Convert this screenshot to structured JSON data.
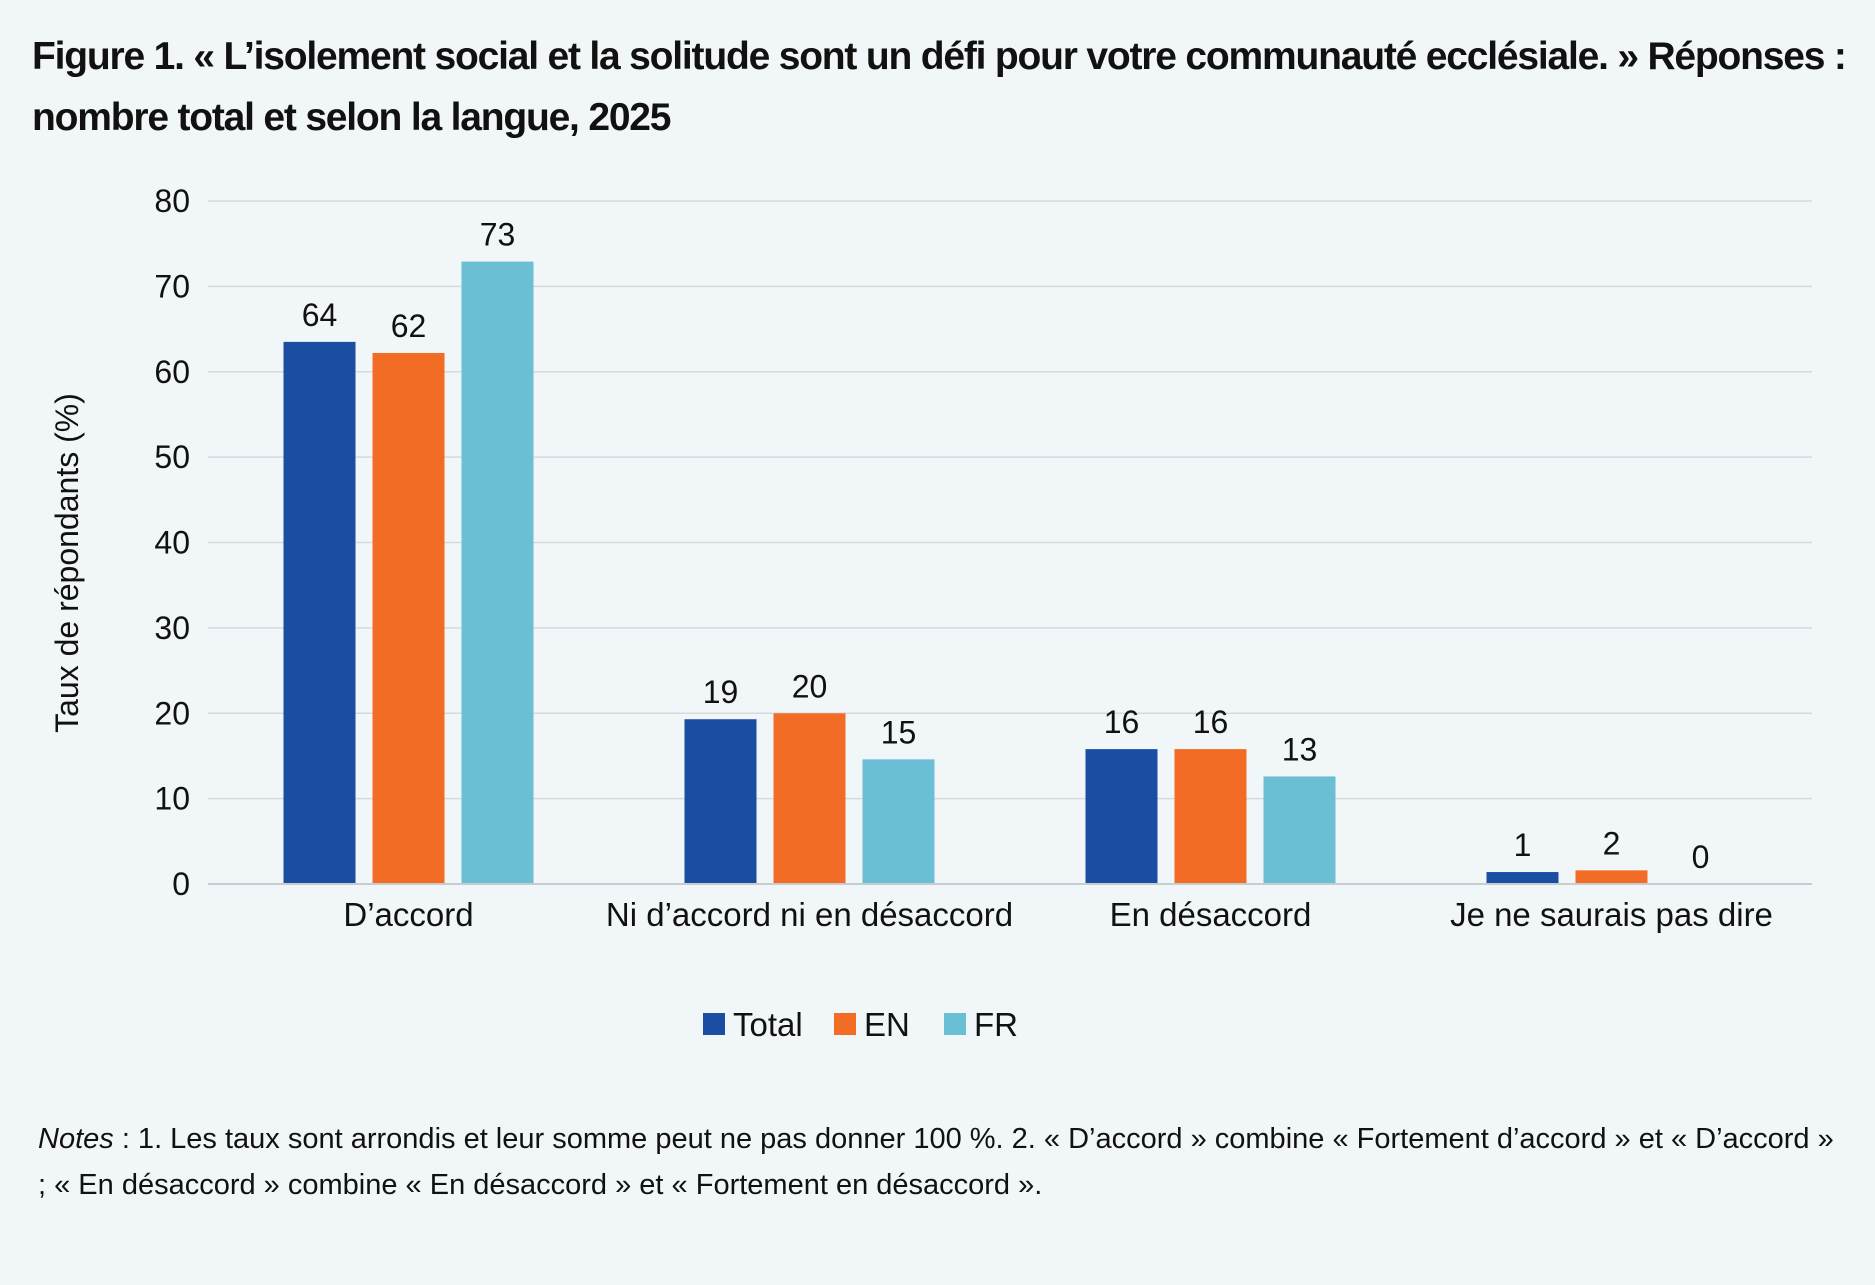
{
  "chart_data": {
    "type": "bar",
    "title": "Figure 1. « L’isolement social et la solitude sont un défi pour votre communauté ecclésiale. » Réponses : nombre total et selon la langue, 2025",
    "ylabel": "Taux de répondants (%)",
    "xlabel": "",
    "ylim": [
      0,
      80
    ],
    "yticks": [
      0,
      10,
      20,
      30,
      40,
      50,
      60,
      70,
      80
    ],
    "grid": true,
    "legend_position": "bottom-center",
    "categories": [
      "D’accord",
      "Ni d’accord ni en désaccord",
      "En désaccord",
      "Je ne saurais pas dire"
    ],
    "series": [
      {
        "name": "Total",
        "color": "#1b4ea2",
        "values": [
          63.5,
          19.3,
          15.8,
          1.4
        ],
        "labels": [
          "64",
          "19",
          "16",
          "1"
        ]
      },
      {
        "name": "EN",
        "color": "#f36c26",
        "values": [
          62.2,
          20.0,
          15.8,
          1.6
        ],
        "labels": [
          "62",
          "20",
          "16",
          "2"
        ]
      },
      {
        "name": "FR",
        "color": "#6bbfd5",
        "values": [
          72.9,
          14.6,
          12.6,
          0.0
        ],
        "labels": [
          "73",
          "15",
          "13",
          "0"
        ]
      }
    ]
  },
  "notes": {
    "label": "Notes",
    "text": " : 1. Les taux sont arrondis et leur somme peut ne pas donner 100 %. 2. « D’accord » combine « Fortement d’accord » et « D’accord » ; « En désaccord » combine « En désaccord » et « Fortement en désaccord »."
  }
}
